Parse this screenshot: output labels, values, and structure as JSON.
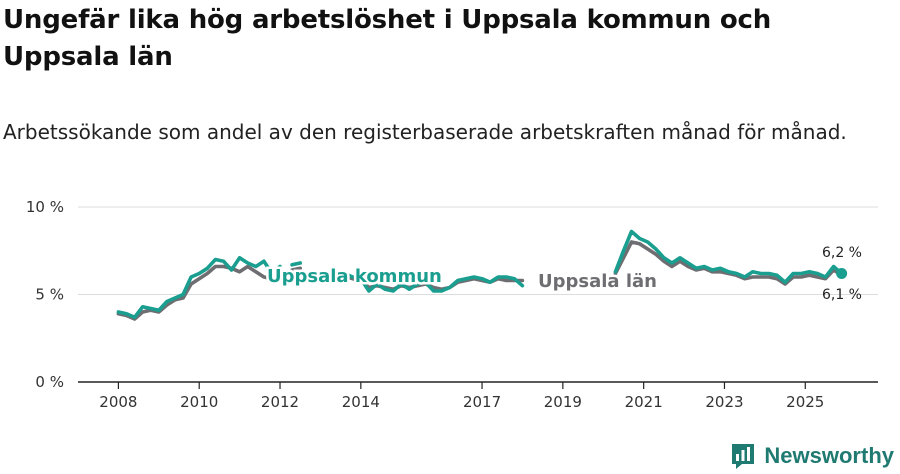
{
  "title": "Ungefär lika hög arbetslöshet i Uppsala kommun och Uppsala län",
  "subtitle": "Arbetssökande som andel av den registerbaserade arbetskraften månad för månad.",
  "brand": {
    "name": "Newsworthy",
    "color": "#1f7a72"
  },
  "chart_data": {
    "type": "line",
    "ylim": [
      0,
      10
    ],
    "xlim": [
      2007.0,
      2026.8
    ],
    "y_ticks": [
      0,
      5,
      10
    ],
    "y_tick_labels": [
      "0 %",
      "5 %",
      "10 %"
    ],
    "x_ticks": [
      2008,
      2010,
      2012,
      2014,
      2017,
      2019,
      2021,
      2023,
      2025
    ],
    "x_tick_labels": [
      "2008",
      "2010",
      "2012",
      "2014",
      "2017",
      "2019",
      "2021",
      "2023",
      "2025"
    ],
    "grid": true,
    "series": [
      {
        "name": "Uppsala län",
        "label": "Uppsala län",
        "color": "#6e6e72",
        "end_label": "6,1 %",
        "segments": [
          [
            [
              2008.0,
              3.9
            ],
            [
              2008.2,
              3.8
            ],
            [
              2008.4,
              3.6
            ],
            [
              2008.6,
              4.0
            ],
            [
              2008.8,
              4.1
            ],
            [
              2009.0,
              4.0
            ],
            [
              2009.2,
              4.4
            ],
            [
              2009.4,
              4.7
            ],
            [
              2009.6,
              4.8
            ],
            [
              2009.8,
              5.6
            ],
            [
              2010.0,
              5.9
            ],
            [
              2010.2,
              6.2
            ],
            [
              2010.4,
              6.6
            ],
            [
              2010.6,
              6.6
            ],
            [
              2010.8,
              6.5
            ],
            [
              2011.0,
              6.3
            ],
            [
              2011.2,
              6.6
            ],
            [
              2011.4,
              6.3
            ],
            [
              2011.6,
              6.0
            ],
            [
              2011.8,
              5.9
            ],
            [
              2012.0,
              6.3
            ]
          ],
          [
            [
              2012.3,
              6.4
            ],
            [
              2012.5,
              6.5
            ]
          ],
          [
            [
              2013.2,
              6.0
            ],
            [
              2013.5,
              6.1
            ],
            [
              2013.8,
              5.9
            ],
            [
              2014.0,
              5.8
            ],
            [
              2014.2,
              5.4
            ],
            [
              2014.4,
              5.5
            ],
            [
              2014.6,
              5.4
            ],
            [
              2014.8,
              5.3
            ],
            [
              2015.0,
              5.5
            ],
            [
              2015.2,
              5.4
            ],
            [
              2015.4,
              5.5
            ],
            [
              2015.6,
              5.6
            ],
            [
              2015.8,
              5.4
            ],
            [
              2016.0,
              5.3
            ],
            [
              2016.2,
              5.4
            ],
            [
              2016.4,
              5.7
            ],
            [
              2016.6,
              5.8
            ],
            [
              2016.8,
              5.9
            ],
            [
              2017.0,
              5.8
            ],
            [
              2017.2,
              5.7
            ],
            [
              2017.4,
              5.9
            ],
            [
              2017.6,
              5.8
            ],
            [
              2017.8,
              5.8
            ],
            [
              2018.0,
              5.8
            ]
          ],
          [
            [
              2020.3,
              6.2
            ],
            [
              2020.5,
              7.1
            ],
            [
              2020.7,
              8.0
            ],
            [
              2020.9,
              7.9
            ],
            [
              2021.1,
              7.6
            ],
            [
              2021.3,
              7.3
            ],
            [
              2021.5,
              6.9
            ],
            [
              2021.7,
              6.6
            ],
            [
              2021.9,
              6.9
            ],
            [
              2022.1,
              6.6
            ],
            [
              2022.3,
              6.4
            ],
            [
              2022.5,
              6.5
            ],
            [
              2022.7,
              6.3
            ],
            [
              2022.9,
              6.3
            ],
            [
              2023.1,
              6.2
            ],
            [
              2023.3,
              6.1
            ],
            [
              2023.5,
              5.9
            ],
            [
              2023.7,
              6.0
            ],
            [
              2023.9,
              6.0
            ],
            [
              2024.1,
              6.0
            ],
            [
              2024.3,
              5.9
            ],
            [
              2024.5,
              5.6
            ],
            [
              2024.7,
              6.0
            ],
            [
              2024.9,
              6.0
            ],
            [
              2025.1,
              6.1
            ],
            [
              2025.3,
              6.0
            ],
            [
              2025.5,
              5.9
            ],
            [
              2025.7,
              6.4
            ],
            [
              2025.9,
              6.1
            ]
          ]
        ]
      },
      {
        "name": "Uppsala kommun",
        "label": "Uppsala kommun",
        "color": "#1a9e8f",
        "end_label": "6,2 %",
        "segments": [
          [
            [
              2008.0,
              4.0
            ],
            [
              2008.2,
              3.9
            ],
            [
              2008.4,
              3.7
            ],
            [
              2008.6,
              4.3
            ],
            [
              2008.8,
              4.2
            ],
            [
              2009.0,
              4.1
            ],
            [
              2009.2,
              4.6
            ],
            [
              2009.4,
              4.8
            ],
            [
              2009.6,
              5.0
            ],
            [
              2009.8,
              6.0
            ],
            [
              2010.0,
              6.2
            ],
            [
              2010.2,
              6.5
            ],
            [
              2010.4,
              7.0
            ],
            [
              2010.6,
              6.9
            ],
            [
              2010.8,
              6.4
            ],
            [
              2011.0,
              7.1
            ],
            [
              2011.2,
              6.8
            ],
            [
              2011.4,
              6.6
            ],
            [
              2011.6,
              6.9
            ],
            [
              2011.8,
              6.2
            ],
            [
              2012.0,
              6.6
            ]
          ],
          [
            [
              2012.3,
              6.7
            ],
            [
              2012.5,
              6.8
            ]
          ],
          [
            [
              2013.2,
              6.1
            ],
            [
              2013.5,
              6.3
            ],
            [
              2013.8,
              6.0
            ],
            [
              2014.0,
              5.9
            ],
            [
              2014.2,
              5.2
            ],
            [
              2014.4,
              5.6
            ],
            [
              2014.6,
              5.3
            ],
            [
              2014.8,
              5.2
            ],
            [
              2015.0,
              5.6
            ],
            [
              2015.2,
              5.3
            ],
            [
              2015.4,
              5.6
            ],
            [
              2015.6,
              5.7
            ],
            [
              2015.8,
              5.2
            ],
            [
              2016.0,
              5.2
            ],
            [
              2016.2,
              5.4
            ],
            [
              2016.4,
              5.8
            ],
            [
              2016.6,
              5.9
            ],
            [
              2016.8,
              6.0
            ],
            [
              2017.0,
              5.9
            ],
            [
              2017.2,
              5.7
            ],
            [
              2017.4,
              6.0
            ],
            [
              2017.6,
              6.0
            ],
            [
              2017.8,
              5.9
            ],
            [
              2018.0,
              5.5
            ]
          ],
          [
            [
              2020.3,
              6.3
            ],
            [
              2020.5,
              7.5
            ],
            [
              2020.7,
              8.6
            ],
            [
              2020.9,
              8.2
            ],
            [
              2021.1,
              8.0
            ],
            [
              2021.3,
              7.6
            ],
            [
              2021.5,
              7.1
            ],
            [
              2021.7,
              6.8
            ],
            [
              2021.9,
              7.1
            ],
            [
              2022.1,
              6.8
            ],
            [
              2022.3,
              6.5
            ],
            [
              2022.5,
              6.6
            ],
            [
              2022.7,
              6.4
            ],
            [
              2022.9,
              6.5
            ],
            [
              2023.1,
              6.3
            ],
            [
              2023.3,
              6.2
            ],
            [
              2023.5,
              6.0
            ],
            [
              2023.7,
              6.3
            ],
            [
              2023.9,
              6.2
            ],
            [
              2024.1,
              6.2
            ],
            [
              2024.3,
              6.1
            ],
            [
              2024.5,
              5.7
            ],
            [
              2024.7,
              6.2
            ],
            [
              2024.9,
              6.2
            ],
            [
              2025.1,
              6.3
            ],
            [
              2025.3,
              6.2
            ],
            [
              2025.5,
              6.0
            ],
            [
              2025.7,
              6.6
            ],
            [
              2025.9,
              6.2
            ]
          ]
        ]
      }
    ]
  }
}
